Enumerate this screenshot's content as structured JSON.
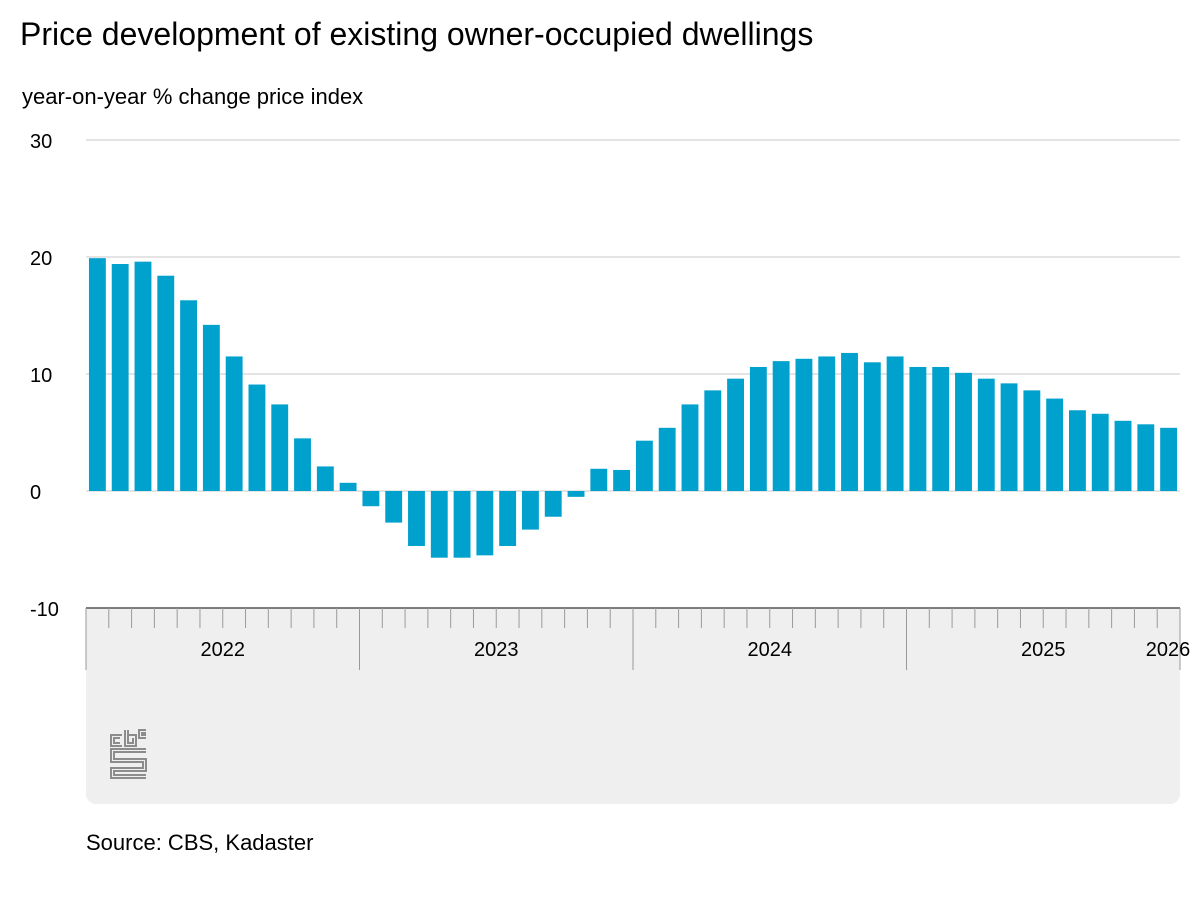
{
  "title": "Price development of existing owner-occupied dwellings",
  "subtitle": "year-on-year % change price index",
  "source": "Source: CBS, Kadaster",
  "logo_text": "cbs",
  "colors": {
    "bar": "#00a1cd",
    "grid": "#c8c8c8",
    "panel": "#efefef",
    "tick": "#9a9a9a"
  },
  "chart_data": {
    "type": "bar",
    "title": "Price development of existing owner-occupied dwellings",
    "ylabel": "year-on-year % change price index",
    "ylim": [
      -10,
      30
    ],
    "yticks": [
      -10,
      0,
      10,
      20,
      30
    ],
    "year_labels": [
      "2022",
      "2023",
      "2024",
      "2025",
      "2026"
    ],
    "grid": true,
    "categories": [
      "2022-01",
      "2022-02",
      "2022-03",
      "2022-04",
      "2022-05",
      "2022-06",
      "2022-07",
      "2022-08",
      "2022-09",
      "2022-10",
      "2022-11",
      "2022-12",
      "2023-01",
      "2023-02",
      "2023-03",
      "2023-04",
      "2023-05",
      "2023-06",
      "2023-07",
      "2023-08",
      "2023-09",
      "2023-10",
      "2023-11",
      "2023-12",
      "2024-01",
      "2024-02",
      "2024-03",
      "2024-04",
      "2024-05",
      "2024-06",
      "2024-07",
      "2024-08",
      "2024-09",
      "2024-10",
      "2024-11",
      "2024-12",
      "2025-01",
      "2025-02",
      "2025-03",
      "2025-04",
      "2025-05",
      "2025-06",
      "2025-07",
      "2025-08",
      "2025-09",
      "2025-10",
      "2025-11",
      "2025-12"
    ],
    "values": [
      19.9,
      19.4,
      19.6,
      18.4,
      16.3,
      14.2,
      11.5,
      9.1,
      7.4,
      4.5,
      2.1,
      0.7,
      -1.3,
      -2.7,
      -4.7,
      -5.7,
      -5.7,
      -5.5,
      -4.7,
      -3.3,
      -2.2,
      -0.5,
      1.9,
      1.8,
      4.3,
      5.4,
      7.4,
      8.6,
      9.6,
      10.6,
      11.1,
      11.3,
      11.5,
      11.8,
      11.0,
      11.5,
      10.6,
      10.6,
      10.1,
      9.6,
      9.2,
      8.6,
      7.9,
      6.9,
      6.6,
      6.0,
      5.7,
      5.4
    ]
  }
}
